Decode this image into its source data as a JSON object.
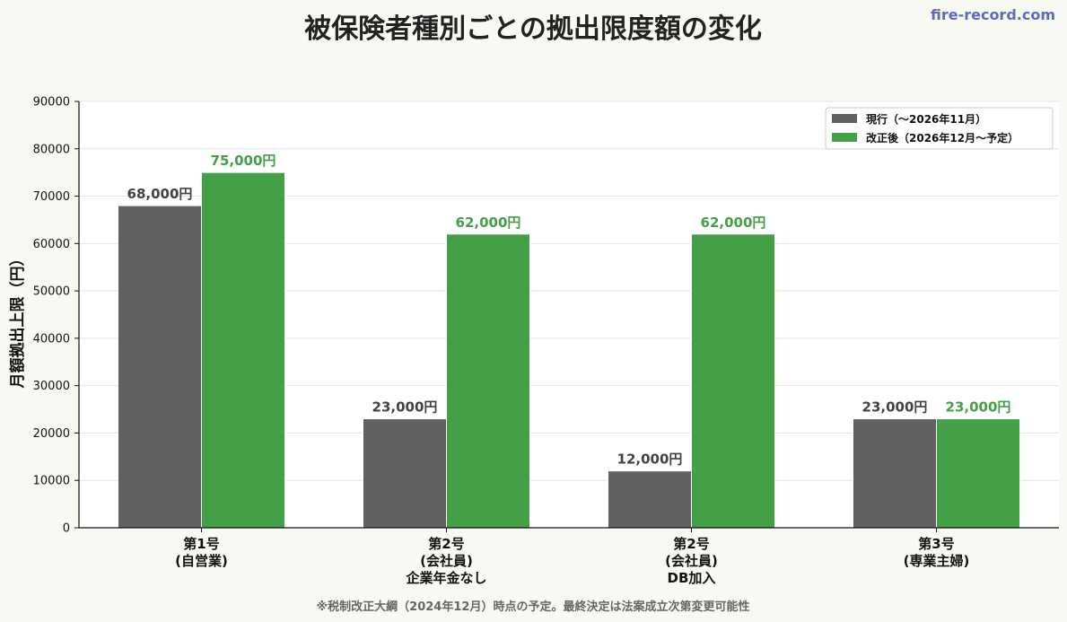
{
  "watermark": "fire-record.com",
  "footnote": "※税制改正大綱（2024年12月）時点の予定。最終決定は法案成立次第変更可能性",
  "colors": {
    "background": "#f9f9f4",
    "current": "#616161",
    "revised": "#43a047",
    "current_label": "#424242",
    "revised_label": "#43a047",
    "watermark": "#5c6bc0",
    "grid": "#e4e4e4"
  },
  "chart_data": {
    "type": "bar",
    "title": "被保険者種別ごとの拠出限度額の変化",
    "xlabel": "",
    "ylabel": "月額拠出上限（円）",
    "ylim": [
      0,
      90000
    ],
    "yticks": [
      "0",
      "10000",
      "20000",
      "30000",
      "40000",
      "50000",
      "60000",
      "70000",
      "80000",
      "90000"
    ],
    "grid": true,
    "legend_position": "top-right",
    "categories": [
      [
        "第1号",
        "(自営業)"
      ],
      [
        "第2号",
        "(会社員)",
        "企業年金なし"
      ],
      [
        "第2号",
        "(会社員)",
        "DB加入"
      ],
      [
        "第3号",
        "(専業主婦)"
      ]
    ],
    "series": [
      {
        "name": "現行（〜2026年11月）",
        "values": [
          68000,
          23000,
          12000,
          23000
        ],
        "labels": [
          "68,000円",
          "23,000円",
          "12,000円",
          "23,000円"
        ]
      },
      {
        "name": "改正後（2026年12月〜予定）",
        "values": [
          75000,
          62000,
          62000,
          23000
        ],
        "labels": [
          "75,000円",
          "62,000円",
          "62,000円",
          "23,000円"
        ]
      }
    ]
  }
}
